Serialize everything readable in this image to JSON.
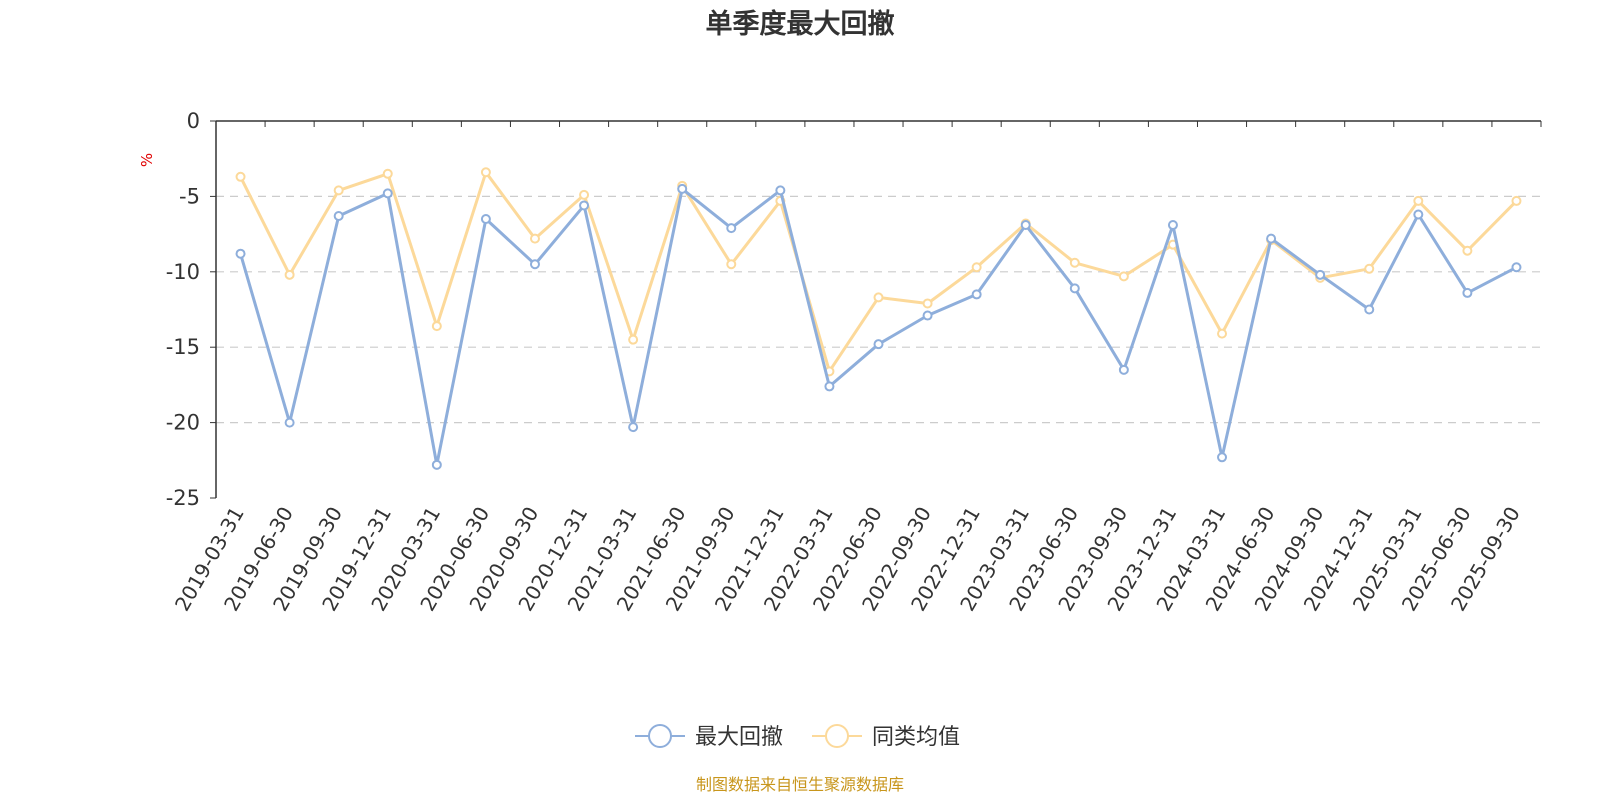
{
  "chart_data": {
    "type": "line",
    "title": "单季度最大回撤",
    "ylabel": "%",
    "ylim": [
      -25,
      0
    ],
    "yticks": [
      0,
      -5,
      -10,
      -15,
      -20,
      -25
    ],
    "grid": true,
    "legend_position": "bottom-center",
    "categories": [
      "2019-03-31",
      "2019-06-30",
      "2019-09-30",
      "2019-12-31",
      "2020-03-31",
      "2020-06-30",
      "2020-09-30",
      "2020-12-31",
      "2021-03-31",
      "2021-06-30",
      "2021-09-30",
      "2021-12-31",
      "2022-03-31",
      "2022-06-30",
      "2022-09-30",
      "2022-12-31",
      "2023-03-31",
      "2023-06-30",
      "2023-09-30",
      "2023-12-31",
      "2024-03-31",
      "2024-06-30",
      "2024-09-30",
      "2024-12-31",
      "2025-03-31",
      "2025-06-30",
      "2025-09-30"
    ],
    "series": [
      {
        "name": "最大回撤",
        "color": "#8eaedb",
        "values": [
          -8.8,
          -20.0,
          -6.3,
          -4.8,
          -22.8,
          -6.5,
          -9.5,
          -5.6,
          -20.3,
          -4.5,
          -7.1,
          -4.6,
          -17.6,
          -14.8,
          -12.9,
          -11.5,
          -6.9,
          -11.1,
          -16.5,
          -6.9,
          -22.3,
          -7.8,
          -10.2,
          -12.5,
          -6.2,
          -11.4,
          -9.7
        ]
      },
      {
        "name": "同类均值",
        "color": "#fcd99a",
        "values": [
          -3.7,
          -10.2,
          -4.6,
          -3.5,
          -13.6,
          -3.4,
          -7.8,
          -4.9,
          -14.5,
          -4.3,
          -9.5,
          -5.3,
          -16.6,
          -11.7,
          -12.1,
          -9.7,
          -6.8,
          -9.4,
          -10.3,
          -8.2,
          -14.1,
          -7.9,
          -10.4,
          -9.8,
          -5.3,
          -8.6,
          -5.3
        ]
      }
    ]
  },
  "footer": {
    "source": "制图数据来自恒生聚源数据库"
  }
}
